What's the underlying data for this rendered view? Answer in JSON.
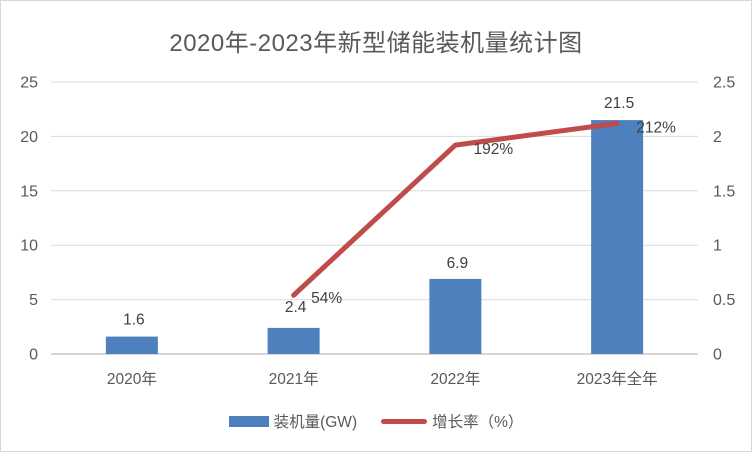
{
  "title": "2020年-2023年新型储能装机量统计图",
  "legend": {
    "items": [
      {
        "label": "装机量(GW)",
        "type": "bar",
        "color": "#4E80BD"
      },
      {
        "label": "增长率（%）",
        "type": "line",
        "color": "#BF4B4B"
      }
    ]
  },
  "colors": {
    "bar": "#4E80BD",
    "line": "#BF4B4B",
    "grid": "#DCDCDC",
    "axis_line": "#C9C9C9",
    "title_text": "#595959",
    "tick_text": "#595959",
    "data_label_text": "#404040"
  },
  "chart_data": {
    "type": "bar",
    "title": "2020年-2023年新型储能装机量统计图",
    "categories": [
      "2020年",
      "2021年",
      "2022年",
      "2023年全年"
    ],
    "series": [
      {
        "name": "装机量(GW)",
        "type": "bar",
        "axis": "left",
        "color": "#4E80BD",
        "values": [
          1.6,
          2.4,
          6.9,
          21.5
        ],
        "data_labels": [
          "1.6",
          "2.4",
          "6.9",
          "21.5"
        ]
      },
      {
        "name": "增长率（%）",
        "type": "line",
        "axis": "right",
        "color": "#BF4B4B",
        "values": [
          null,
          0.54,
          1.92,
          2.12
        ],
        "data_labels": [
          null,
          "54%",
          "192%",
          "212%"
        ]
      }
    ],
    "left_axis": {
      "min": 0,
      "max": 25,
      "ticks": [
        0,
        5,
        10,
        15,
        20,
        25
      ]
    },
    "right_axis": {
      "min": 0,
      "max": 2.5,
      "ticks": [
        0,
        0.5,
        1,
        1.5,
        2,
        2.5
      ]
    },
    "grid": true,
    "legend_position": "bottom"
  }
}
